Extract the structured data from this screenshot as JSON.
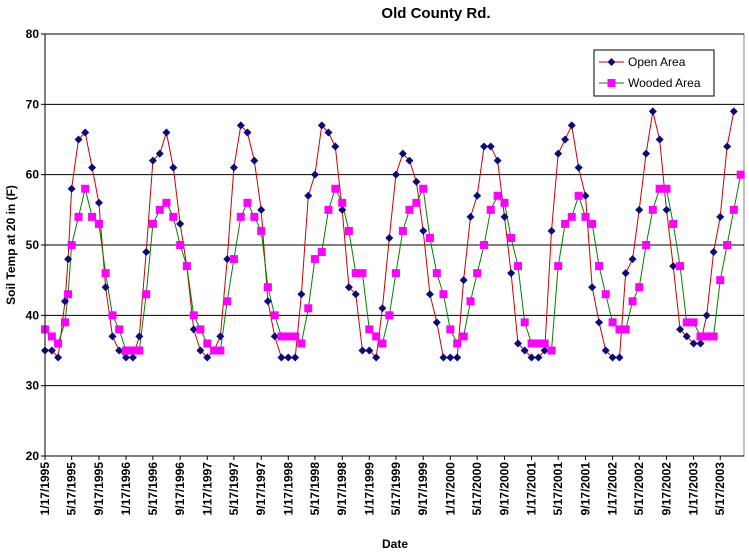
{
  "chart_data": {
    "type": "line",
    "title": "Old County Rd.",
    "xlabel": "Date",
    "ylabel": "Soil Temp at 20 in (F)",
    "ylim": [
      20,
      80
    ],
    "yticks": [
      20,
      30,
      40,
      50,
      60,
      70,
      80
    ],
    "xlim": [
      "1995-01-17",
      "2003-09-01"
    ],
    "x_tick_labels": [
      "1/17/1995",
      "5/17/1995",
      "9/17/1995",
      "1/17/1996",
      "5/17/1996",
      "9/17/1996",
      "1/17/1997",
      "5/17/1997",
      "9/17/1997",
      "1/17/1998",
      "5/17/1998",
      "9/17/1998",
      "1/17/1999",
      "5/17/1999",
      "9/17/1999",
      "1/17/2000",
      "5/17/2000",
      "9/17/2000",
      "1/17/2001",
      "5/17/2001",
      "9/17/2001",
      "1/17/2002",
      "5/17/2002",
      "9/17/2002",
      "1/17/2003",
      "5/17/2003"
    ],
    "x_tick_dates": [
      "1995-01-17",
      "1995-05-17",
      "1995-09-17",
      "1996-01-17",
      "1996-05-17",
      "1996-09-17",
      "1997-01-17",
      "1997-05-17",
      "1997-09-17",
      "1998-01-17",
      "1998-05-17",
      "1998-09-17",
      "1999-01-17",
      "1999-05-17",
      "1999-09-17",
      "2000-01-17",
      "2000-05-17",
      "2000-09-17",
      "2001-01-17",
      "2001-05-17",
      "2001-09-17",
      "2002-01-17",
      "2002-05-17",
      "2002-09-17",
      "2003-01-17",
      "2003-05-17"
    ],
    "grid": {
      "horizontal": true,
      "vertical": false
    },
    "legend_position": "top-right",
    "series": [
      {
        "name": "Open Area",
        "color": "#0a0a7a",
        "line_color": "#cc0000",
        "marker": "diamond",
        "points": [
          [
            "1995-01-17",
            35
          ],
          [
            "1995-02-17",
            35
          ],
          [
            "1995-03-17",
            34
          ],
          [
            "1995-04-17",
            42
          ],
          [
            "1995-05-01",
            48
          ],
          [
            "1995-05-17",
            58
          ],
          [
            "1995-06-17",
            65
          ],
          [
            "1995-07-17",
            66
          ],
          [
            "1995-08-17",
            61
          ],
          [
            "1995-09-17",
            56
          ],
          [
            "1995-10-17",
            44
          ],
          [
            "1995-11-17",
            37
          ],
          [
            "1995-12-17",
            35
          ],
          [
            "1996-01-17",
            34
          ],
          [
            "1996-02-17",
            34
          ],
          [
            "1996-03-17",
            37
          ],
          [
            "1996-04-17",
            49
          ],
          [
            "1996-05-17",
            62
          ],
          [
            "1996-06-17",
            63
          ],
          [
            "1996-07-17",
            66
          ],
          [
            "1996-08-17",
            61
          ],
          [
            "1996-09-17",
            53
          ],
          [
            "1996-10-17",
            47
          ],
          [
            "1996-11-17",
            38
          ],
          [
            "1996-12-17",
            35
          ],
          [
            "1997-01-17",
            34
          ],
          [
            "1997-02-17",
            35
          ],
          [
            "1997-03-17",
            37
          ],
          [
            "1997-04-17",
            48
          ],
          [
            "1997-05-17",
            61
          ],
          [
            "1997-06-17",
            67
          ],
          [
            "1997-07-17",
            66
          ],
          [
            "1997-08-17",
            62
          ],
          [
            "1997-09-17",
            55
          ],
          [
            "1997-10-17",
            42
          ],
          [
            "1997-11-17",
            37
          ],
          [
            "1997-12-17",
            34
          ],
          [
            "1998-01-17",
            34
          ],
          [
            "1998-02-17",
            34
          ],
          [
            "1998-03-17",
            43
          ],
          [
            "1998-04-17",
            57
          ],
          [
            "1998-05-17",
            60
          ],
          [
            "1998-06-17",
            67
          ],
          [
            "1998-07-17",
            66
          ],
          [
            "1998-08-17",
            64
          ],
          [
            "1998-09-17",
            55
          ],
          [
            "1998-10-17",
            44
          ],
          [
            "1998-11-17",
            43
          ],
          [
            "1998-12-17",
            35
          ],
          [
            "1999-01-17",
            35
          ],
          [
            "1999-02-17",
            34
          ],
          [
            "1999-03-17",
            41
          ],
          [
            "1999-04-17",
            51
          ],
          [
            "1999-05-17",
            60
          ],
          [
            "1999-06-17",
            63
          ],
          [
            "1999-07-17",
            62
          ],
          [
            "1999-08-17",
            59
          ],
          [
            "1999-09-17",
            52
          ],
          [
            "1999-10-17",
            43
          ],
          [
            "1999-11-17",
            39
          ],
          [
            "1999-12-17",
            34
          ],
          [
            "2000-01-17",
            34
          ],
          [
            "2000-02-17",
            34
          ],
          [
            "2000-03-17",
            45
          ],
          [
            "2000-04-17",
            54
          ],
          [
            "2000-05-17",
            57
          ],
          [
            "2000-06-17",
            64
          ],
          [
            "2000-07-17",
            64
          ],
          [
            "2000-08-17",
            62
          ],
          [
            "2000-09-17",
            54
          ],
          [
            "2000-10-17",
            46
          ],
          [
            "2000-11-17",
            36
          ],
          [
            "2000-12-17",
            35
          ],
          [
            "2001-01-17",
            34
          ],
          [
            "2001-02-17",
            34
          ],
          [
            "2001-03-17",
            35
          ],
          [
            "2001-04-17",
            52
          ],
          [
            "2001-05-17",
            63
          ],
          [
            "2001-06-17",
            65
          ],
          [
            "2001-07-17",
            67
          ],
          [
            "2001-08-17",
            61
          ],
          [
            "2001-09-17",
            57
          ],
          [
            "2001-10-17",
            44
          ],
          [
            "2001-11-17",
            39
          ],
          [
            "2001-12-17",
            35
          ],
          [
            "2002-01-17",
            34
          ],
          [
            "2002-02-17",
            34
          ],
          [
            "2002-03-17",
            46
          ],
          [
            "2002-04-17",
            48
          ],
          [
            "2002-05-17",
            55
          ],
          [
            "2002-06-17",
            63
          ],
          [
            "2002-07-17",
            69
          ],
          [
            "2002-08-17",
            65
          ],
          [
            "2002-09-17",
            55
          ],
          [
            "2002-10-17",
            47
          ],
          [
            "2002-11-17",
            38
          ],
          [
            "2002-12-17",
            37
          ],
          [
            "2003-01-17",
            36
          ],
          [
            "2003-02-17",
            36
          ],
          [
            "2003-03-17",
            40
          ],
          [
            "2003-04-17",
            49
          ],
          [
            "2003-05-17",
            54
          ],
          [
            "2003-06-17",
            64
          ],
          [
            "2003-07-17",
            69
          ]
        ]
      },
      {
        "name": "Wooded Area",
        "color": "#ff00ff",
        "line_color": "#008000",
        "marker": "square",
        "points": [
          [
            "1995-01-17",
            38
          ],
          [
            "1995-02-17",
            37
          ],
          [
            "1995-03-17",
            36
          ],
          [
            "1995-04-17",
            39
          ],
          [
            "1995-05-01",
            43
          ],
          [
            "1995-05-17",
            50
          ],
          [
            "1995-06-17",
            54
          ],
          [
            "1995-07-17",
            58
          ],
          [
            "1995-08-17",
            54
          ],
          [
            "1995-09-17",
            53
          ],
          [
            "1995-10-17",
            46
          ],
          [
            "1995-11-17",
            40
          ],
          [
            "1995-12-17",
            38
          ],
          [
            "1996-01-17",
            35
          ],
          [
            "1996-02-17",
            35
          ],
          [
            "1996-03-17",
            35
          ],
          [
            "1996-04-17",
            43
          ],
          [
            "1996-05-17",
            53
          ],
          [
            "1996-06-17",
            55
          ],
          [
            "1996-07-17",
            56
          ],
          [
            "1996-08-17",
            54
          ],
          [
            "1996-09-17",
            50
          ],
          [
            "1996-10-17",
            47
          ],
          [
            "1996-11-17",
            40
          ],
          [
            "1996-12-17",
            38
          ],
          [
            "1997-01-17",
            36
          ],
          [
            "1997-02-17",
            35
          ],
          [
            "1997-03-17",
            35
          ],
          [
            "1997-04-17",
            42
          ],
          [
            "1997-05-17",
            48
          ],
          [
            "1997-06-17",
            54
          ],
          [
            "1997-07-17",
            56
          ],
          [
            "1997-08-17",
            54
          ],
          [
            "1997-09-17",
            52
          ],
          [
            "1997-10-17",
            44
          ],
          [
            "1997-11-17",
            40
          ],
          [
            "1997-12-17",
            37
          ],
          [
            "1998-01-17",
            37
          ],
          [
            "1998-02-17",
            37
          ],
          [
            "1998-03-17",
            36
          ],
          [
            "1998-04-17",
            41
          ],
          [
            "1998-05-17",
            48
          ],
          [
            "1998-06-17",
            49
          ],
          [
            "1998-07-17",
            55
          ],
          [
            "1998-08-17",
            58
          ],
          [
            "1998-09-17",
            56
          ],
          [
            "1998-10-17",
            52
          ],
          [
            "1998-11-17",
            46
          ],
          [
            "1998-12-17",
            46
          ],
          [
            "1999-01-17",
            38
          ],
          [
            "1999-02-17",
            37
          ],
          [
            "1999-03-17",
            36
          ],
          [
            "1999-04-17",
            40
          ],
          [
            "1999-05-17",
            46
          ],
          [
            "1999-06-17",
            52
          ],
          [
            "1999-07-17",
            55
          ],
          [
            "1999-08-17",
            56
          ],
          [
            "1999-09-17",
            58
          ],
          [
            "1999-10-17",
            51
          ],
          [
            "1999-11-17",
            46
          ],
          [
            "1999-12-17",
            43
          ],
          [
            "2000-01-17",
            38
          ],
          [
            "2000-02-17",
            36
          ],
          [
            "2000-03-17",
            37
          ],
          [
            "2000-04-17",
            42
          ],
          [
            "2000-05-17",
            46
          ],
          [
            "2000-06-17",
            50
          ],
          [
            "2000-07-17",
            55
          ],
          [
            "2000-08-17",
            57
          ],
          [
            "2000-09-17",
            56
          ],
          [
            "2000-10-17",
            51
          ],
          [
            "2000-11-17",
            47
          ],
          [
            "2000-12-17",
            39
          ],
          [
            "2001-01-17",
            36
          ],
          [
            "2001-02-17",
            36
          ],
          [
            "2001-03-17",
            36
          ],
          [
            "2001-04-17",
            35
          ],
          [
            "2001-05-17",
            47
          ],
          [
            "2001-06-17",
            53
          ],
          [
            "2001-07-17",
            54
          ],
          [
            "2001-08-17",
            57
          ],
          [
            "2001-09-17",
            54
          ],
          [
            "2001-10-17",
            53
          ],
          [
            "2001-11-17",
            47
          ],
          [
            "2001-12-17",
            43
          ],
          [
            "2002-01-17",
            39
          ],
          [
            "2002-02-17",
            38
          ],
          [
            "2002-03-17",
            38
          ],
          [
            "2002-04-17",
            42
          ],
          [
            "2002-05-17",
            44
          ],
          [
            "2002-06-17",
            50
          ],
          [
            "2002-07-17",
            55
          ],
          [
            "2002-08-17",
            58
          ],
          [
            "2002-09-17",
            58
          ],
          [
            "2002-10-17",
            53
          ],
          [
            "2002-11-17",
            47
          ],
          [
            "2002-12-17",
            39
          ],
          [
            "2003-01-17",
            39
          ],
          [
            "2003-02-17",
            37
          ],
          [
            "2003-03-17",
            37
          ],
          [
            "2003-04-17",
            37
          ],
          [
            "2003-05-17",
            45
          ],
          [
            "2003-06-17",
            50
          ],
          [
            "2003-07-17",
            55
          ],
          [
            "2003-08-17",
            60
          ]
        ]
      }
    ]
  }
}
